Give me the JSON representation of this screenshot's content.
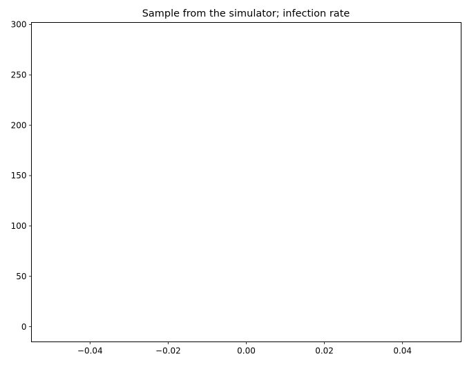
{
  "chart_data": {
    "type": "scatter",
    "title": "Sample from the simulator; infection rate",
    "xlabel": "",
    "ylabel": "",
    "xlim": [
      -0.055,
      0.055
    ],
    "ylim": [
      -15,
      302
    ],
    "x_ticks": [
      -0.04,
      -0.02,
      0.0,
      0.02,
      0.04
    ],
    "x_tick_labels": [
      "−0.04",
      "−0.02",
      "0.00",
      "0.02",
      "0.04"
    ],
    "y_ticks": [
      0,
      50,
      100,
      150,
      200,
      250,
      300
    ],
    "y_tick_labels": [
      "0",
      "50",
      "100",
      "150",
      "200",
      "250",
      "300"
    ],
    "series": [],
    "grid": false,
    "legend": "none"
  }
}
